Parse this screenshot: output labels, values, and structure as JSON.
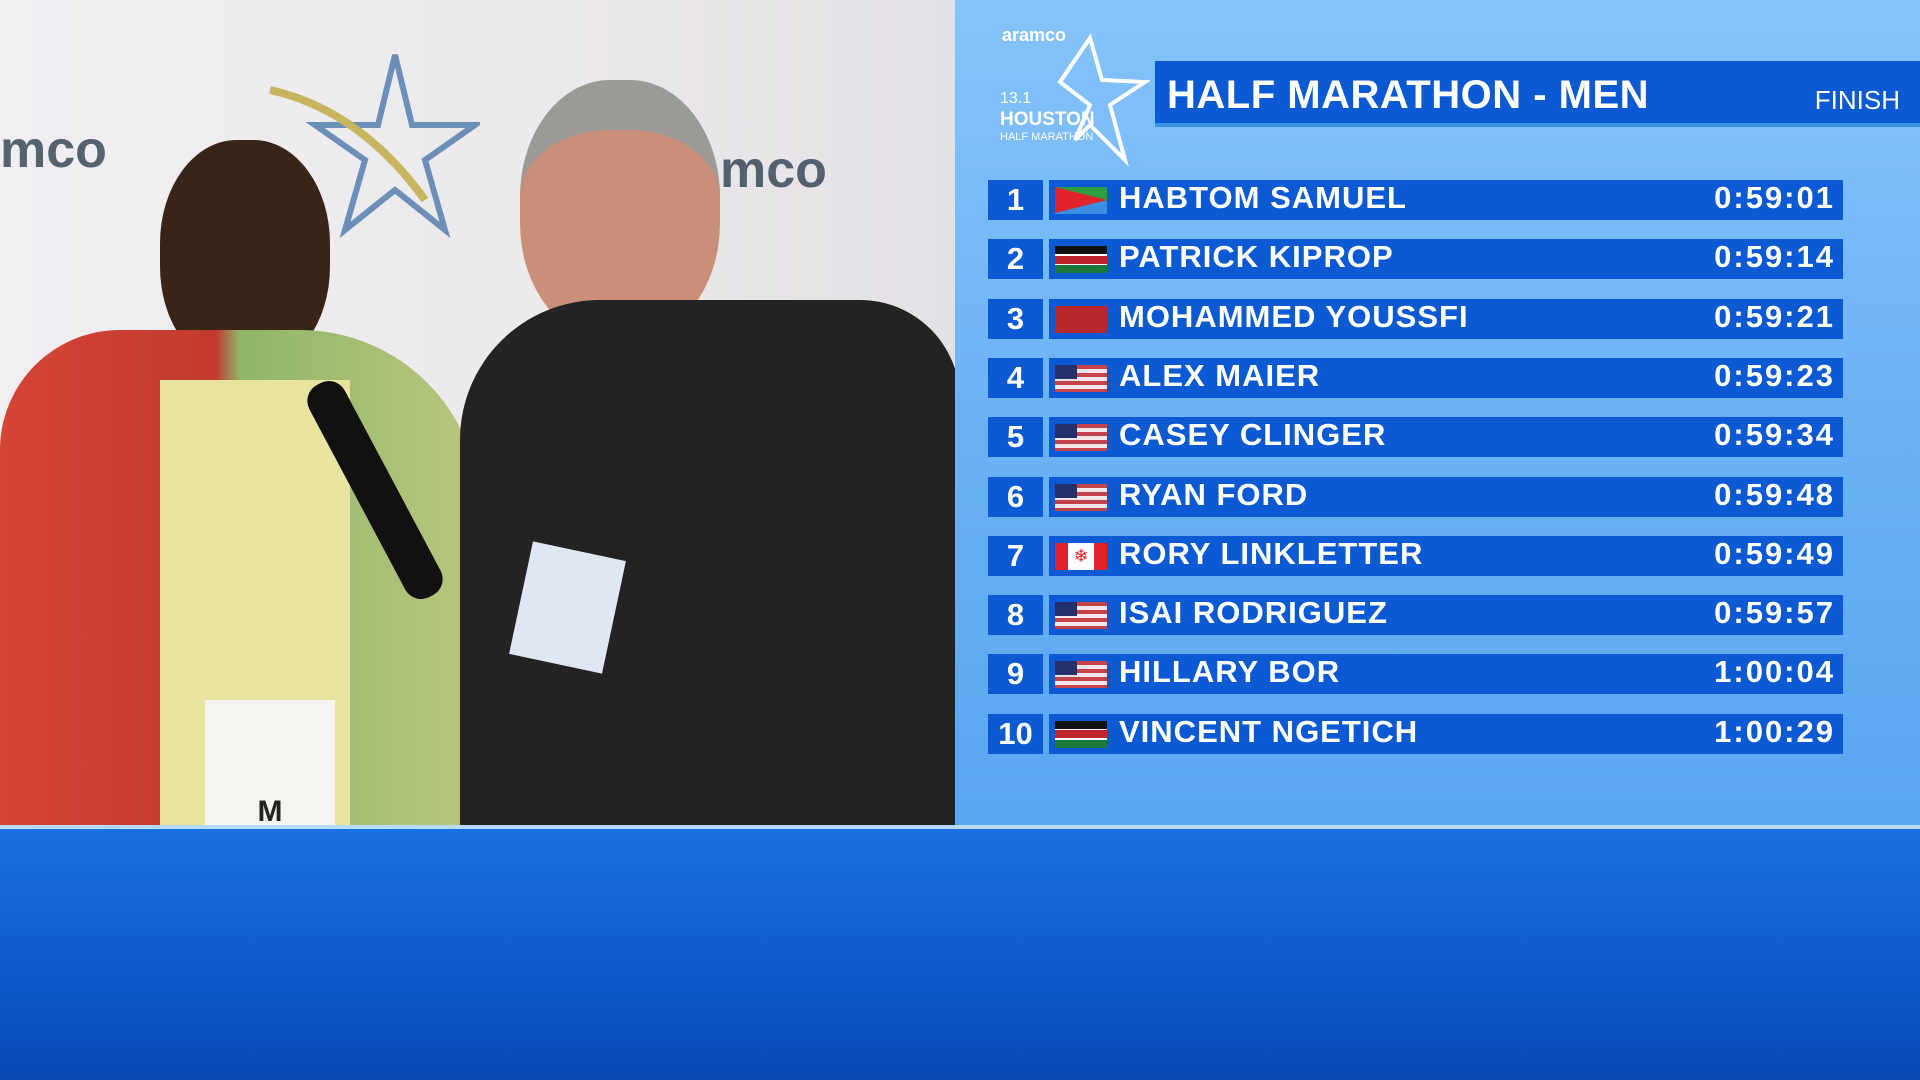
{
  "video": {
    "backdrop_text": [
      "mco",
      "mco",
      "co"
    ],
    "bib_name": "M SAMUEL"
  },
  "logo": {
    "brand": "aramco",
    "line1": "13.1",
    "line2": "HOUSTON",
    "line3": "HALF MARATHON"
  },
  "header": {
    "title": "HALF MARATHON - MEN",
    "status": "FINISH"
  },
  "colors": {
    "bar": "#0b5ad4",
    "board_bg": "#6cb2f5",
    "bottom": "#0a52c2"
  },
  "results": [
    {
      "pos": "1",
      "flag": "eritrea-flag",
      "name": "HABTOM SAMUEL",
      "time": "0:59:01"
    },
    {
      "pos": "2",
      "flag": "kenya-flag",
      "name": "PATRICK KIPROP",
      "time": "0:59:14"
    },
    {
      "pos": "3",
      "flag": "morocco-flag",
      "name": "MOHAMMED YOUSSFI",
      "time": "0:59:21"
    },
    {
      "pos": "4",
      "flag": "usa-flag",
      "name": "ALEX MAIER",
      "time": "0:59:23"
    },
    {
      "pos": "5",
      "flag": "usa-flag",
      "name": "CASEY CLINGER",
      "time": "0:59:34"
    },
    {
      "pos": "6",
      "flag": "usa-flag",
      "name": "RYAN FORD",
      "time": "0:59:48"
    },
    {
      "pos": "7",
      "flag": "canada-flag",
      "name": "RORY LINKLETTER",
      "time": "0:59:49"
    },
    {
      "pos": "8",
      "flag": "usa-flag",
      "name": "ISAI RODRIGUEZ",
      "time": "0:59:57"
    },
    {
      "pos": "9",
      "flag": "usa-flag",
      "name": "HILLARY BOR",
      "time": "1:00:04"
    },
    {
      "pos": "10",
      "flag": "kenya-flag",
      "name": "VINCENT NGETICH",
      "time": "1:00:29"
    }
  ]
}
